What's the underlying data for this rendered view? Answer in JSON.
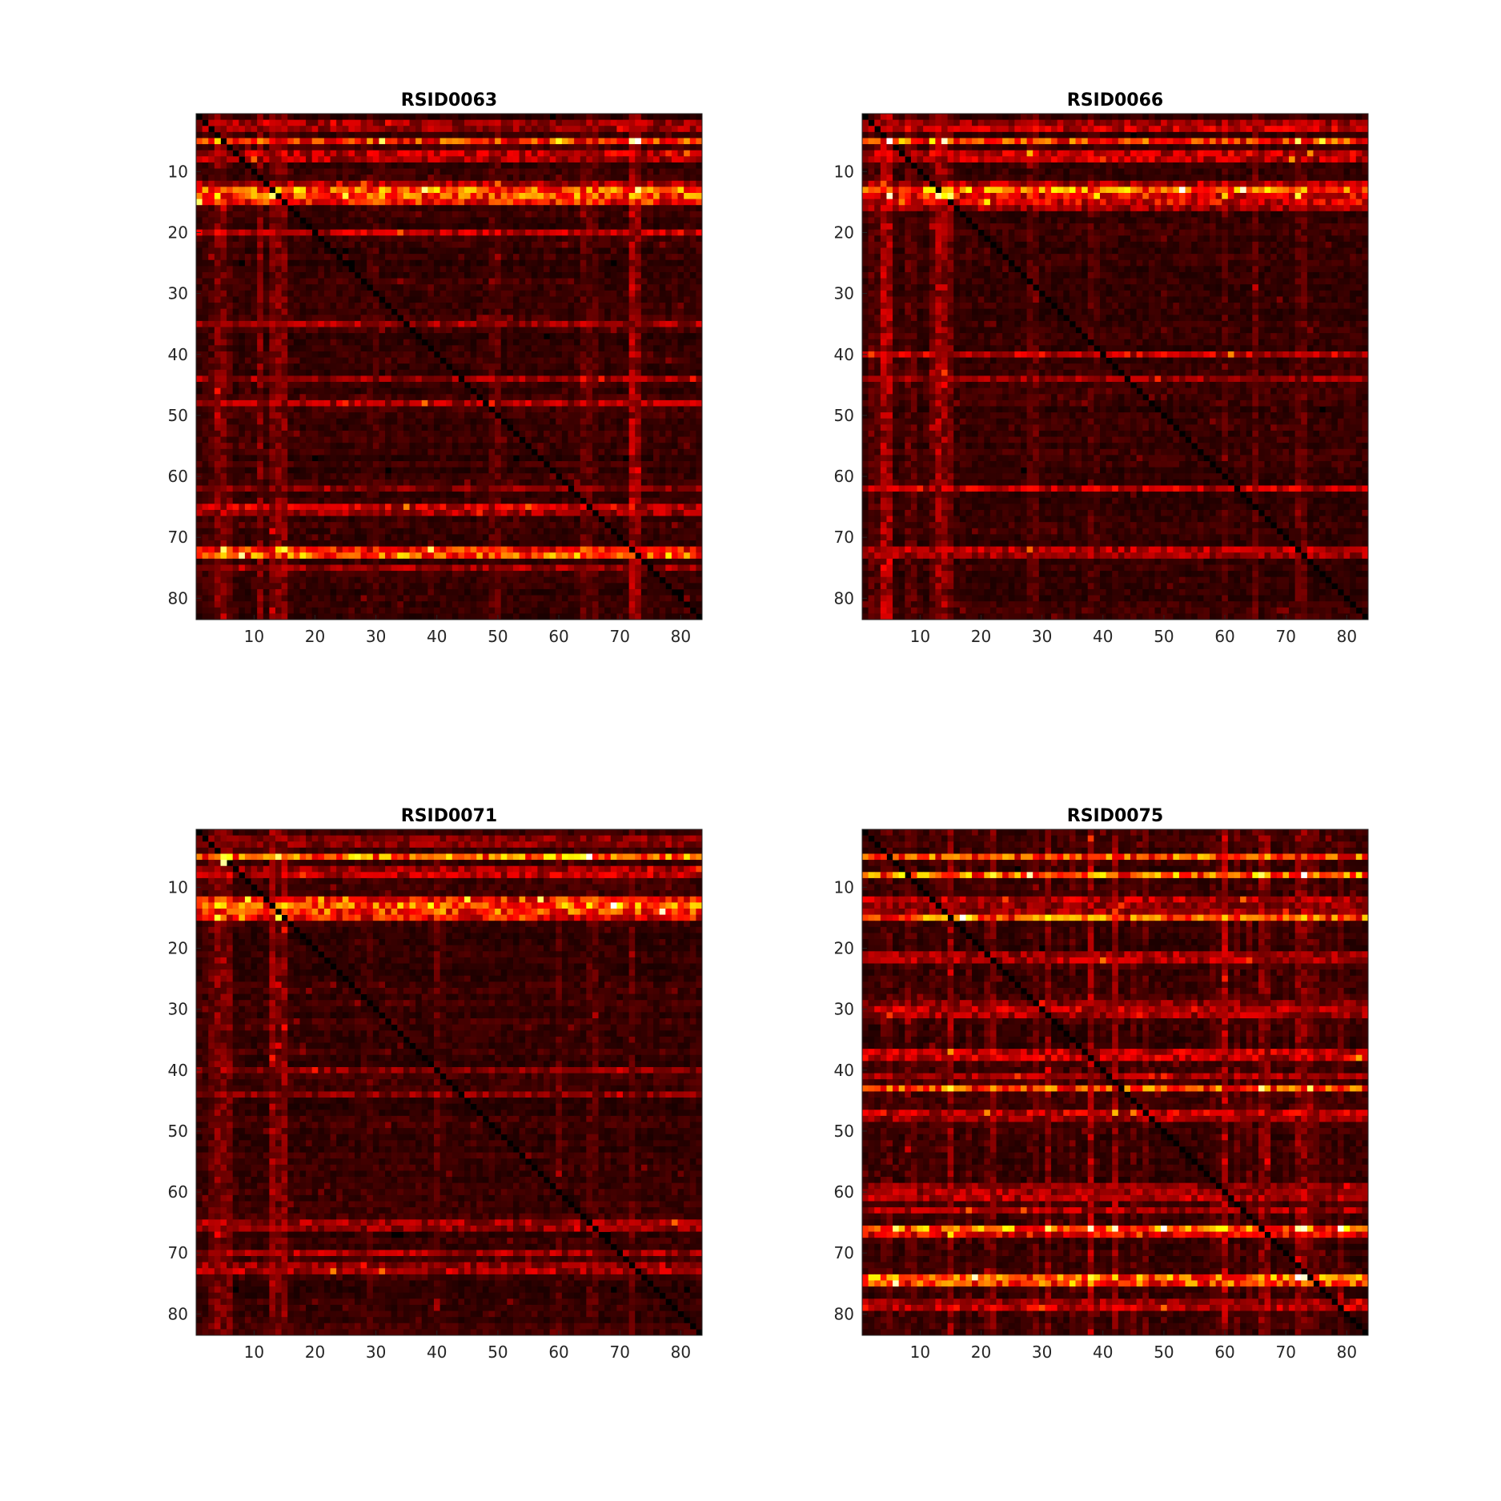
{
  "chart_data": [
    {
      "type": "heatmap",
      "title": "RSID0063",
      "xlabel": "",
      "ylabel": "",
      "xlim": [
        0.5,
        83.5
      ],
      "ylim": [
        0.5,
        83.5
      ],
      "y_direction": "reverse",
      "matrix_size": 83,
      "colormap": "hot",
      "xticks": [
        10,
        20,
        30,
        40,
        50,
        60,
        70,
        80
      ],
      "yticks": [
        10,
        20,
        30,
        40,
        50,
        60,
        70,
        80
      ],
      "grid": false,
      "strong_rows": [
        5,
        13,
        14,
        15,
        72,
        73
      ],
      "medium_rows": [
        2,
        3,
        7,
        8,
        12,
        20,
        35,
        44,
        48,
        62,
        65,
        66,
        75
      ],
      "strong_cols": [
        4,
        5,
        11,
        13,
        14,
        15,
        72,
        73
      ],
      "medium_cols": [
        2,
        3,
        6,
        29,
        30,
        49,
        50,
        64,
        65,
        66
      ],
      "hotspots": [
        [
          5,
          73,
          1.0
        ],
        [
          5,
          72,
          0.9
        ],
        [
          5,
          31,
          0.85
        ],
        [
          14,
          13,
          0.85
        ],
        [
          72,
          5,
          0.85
        ],
        [
          72,
          15,
          0.8
        ],
        [
          14,
          4,
          0.75
        ],
        [
          5,
          4,
          0.7
        ],
        [
          72,
          14,
          0.7
        ],
        [
          14,
          72,
          0.7
        ],
        [
          13,
          14,
          0.7
        ]
      ],
      "seed": 63
    },
    {
      "type": "heatmap",
      "title": "RSID0066",
      "xlabel": "",
      "ylabel": "",
      "xlim": [
        0.5,
        83.5
      ],
      "ylim": [
        0.5,
        83.5
      ],
      "y_direction": "reverse",
      "matrix_size": 83,
      "colormap": "hot",
      "xticks": [
        10,
        20,
        30,
        40,
        50,
        60,
        70,
        80
      ],
      "yticks": [
        10,
        20,
        30,
        40,
        50,
        60,
        70,
        80
      ],
      "grid": false,
      "strong_rows": [
        5,
        14,
        15,
        13
      ],
      "medium_rows": [
        2,
        3,
        7,
        8,
        12,
        16,
        40,
        44,
        72,
        73,
        62
      ],
      "strong_cols": [
        4,
        5,
        13,
        14,
        15
      ],
      "medium_cols": [
        2,
        3,
        8,
        9,
        12,
        28,
        29,
        38,
        39,
        60,
        65,
        72,
        73
      ],
      "hotspots": [
        [
          5,
          5,
          1.0
        ],
        [
          5,
          14,
          0.95
        ],
        [
          14,
          5,
          0.95
        ],
        [
          14,
          13,
          0.9
        ],
        [
          14,
          15,
          0.85
        ],
        [
          5,
          72,
          0.85
        ],
        [
          14,
          72,
          0.8
        ],
        [
          5,
          12,
          0.75
        ],
        [
          14,
          14,
          0.75
        ],
        [
          5,
          7,
          0.7
        ]
      ],
      "seed": 66
    },
    {
      "type": "heatmap",
      "title": "RSID0071",
      "xlabel": "",
      "ylabel": "",
      "xlim": [
        0.5,
        83.5
      ],
      "ylim": [
        0.5,
        83.5
      ],
      "y_direction": "reverse",
      "matrix_size": 83,
      "colormap": "hot",
      "xticks": [
        10,
        20,
        30,
        40,
        50,
        60,
        70,
        80
      ],
      "yticks": [
        10,
        20,
        30,
        40,
        50,
        60,
        70,
        80
      ],
      "grid": false,
      "strong_rows": [
        5,
        12,
        13,
        14,
        15
      ],
      "medium_rows": [
        2,
        3,
        7,
        8,
        40,
        44,
        65,
        66,
        70,
        72,
        73
      ],
      "strong_cols": [
        4,
        5,
        6,
        13,
        14,
        15
      ],
      "medium_cols": [
        2,
        3,
        28,
        29,
        40,
        41,
        60,
        65,
        66,
        72
      ],
      "hotspots": [
        [
          5,
          65,
          1.0
        ],
        [
          6,
          5,
          0.9
        ],
        [
          5,
          14,
          0.85
        ],
        [
          5,
          5,
          0.8
        ],
        [
          5,
          64,
          0.8
        ],
        [
          5,
          61,
          0.75
        ],
        [
          15,
          14,
          0.8
        ],
        [
          13,
          5,
          0.7
        ],
        [
          5,
          31,
          0.7
        ]
      ],
      "seed": 71
    },
    {
      "type": "heatmap",
      "title": "RSID0075",
      "xlabel": "",
      "ylabel": "",
      "xlim": [
        0.5,
        83.5
      ],
      "ylim": [
        0.5,
        83.5
      ],
      "y_direction": "reverse",
      "matrix_size": 83,
      "colormap": "hot",
      "xticks": [
        10,
        20,
        30,
        40,
        50,
        60,
        70,
        80
      ],
      "yticks": [
        10,
        20,
        30,
        40,
        50,
        60,
        70,
        80
      ],
      "grid": false,
      "strong_rows": [
        5,
        8,
        15,
        43,
        66,
        67,
        74,
        75
      ],
      "medium_rows": [
        12,
        13,
        14,
        21,
        22,
        29,
        30,
        31,
        37,
        38,
        41,
        47,
        48,
        59,
        60,
        61,
        63,
        78,
        79
      ],
      "strong_cols": [
        15,
        22,
        31,
        38,
        42,
        60,
        66,
        67,
        72,
        73
      ],
      "medium_cols": [
        4,
        5,
        8,
        9,
        12,
        13,
        14,
        18,
        21,
        28,
        29,
        33,
        35,
        45,
        47,
        58,
        59,
        62,
        64,
        70,
        74,
        75,
        77,
        79
      ],
      "hotspots": [
        [
          74,
          72,
          1.0
        ],
        [
          74,
          73,
          0.95
        ],
        [
          66,
          42,
          0.95
        ],
        [
          66,
          38,
          0.95
        ],
        [
          66,
          72,
          0.9
        ],
        [
          43,
          66,
          0.9
        ],
        [
          43,
          74,
          0.85
        ],
        [
          8,
          66,
          0.85
        ],
        [
          66,
          31,
          0.85
        ],
        [
          74,
          38,
          0.8
        ],
        [
          43,
          15,
          0.8
        ],
        [
          8,
          22,
          0.8
        ],
        [
          15,
          31,
          0.75
        ],
        [
          66,
          60,
          0.75
        ]
      ],
      "seed": 75
    }
  ]
}
